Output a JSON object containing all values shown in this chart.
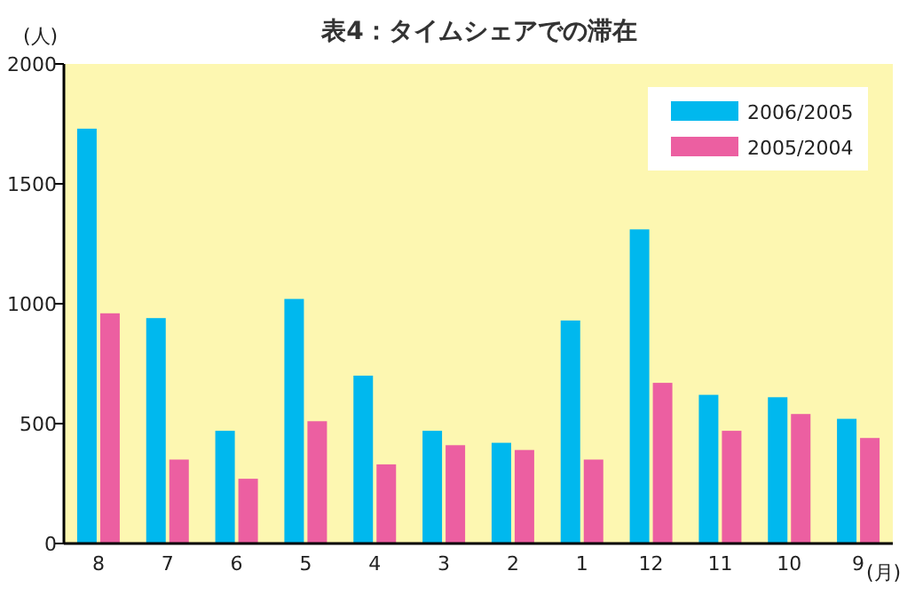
{
  "chart_data": {
    "type": "bar",
    "title": "表4：タイムシェアでの滞在",
    "ylabel": "(人)",
    "xlabel": "(月)",
    "categories": [
      "8",
      "7",
      "6",
      "5",
      "4",
      "3",
      "2",
      "1",
      "12",
      "11",
      "10",
      "9"
    ],
    "series": [
      {
        "name": "2006/2005",
        "color": "#00b8ee",
        "values": [
          1730,
          940,
          470,
          1020,
          700,
          470,
          420,
          930,
          1310,
          620,
          610,
          520
        ]
      },
      {
        "name": "2005/2004",
        "color": "#ec5fa1",
        "values": [
          960,
          350,
          270,
          510,
          330,
          410,
          390,
          350,
          670,
          470,
          540,
          440
        ]
      }
    ],
    "ylim": [
      0,
      2000
    ],
    "yticks": [
      0,
      500,
      1000,
      1500,
      2000
    ],
    "grid": false,
    "legend": "top right"
  }
}
